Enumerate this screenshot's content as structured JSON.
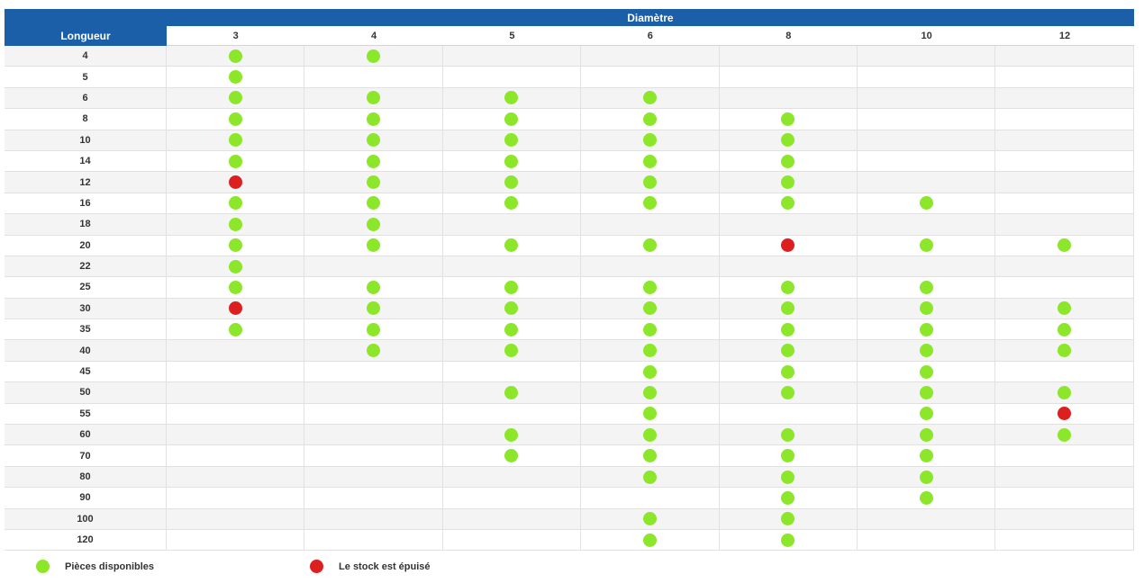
{
  "header": {
    "diametre_label": "Diamètre",
    "longueur_label": "Longueur",
    "diameters": [
      "3",
      "4",
      "5",
      "6",
      "8",
      "10",
      "12"
    ]
  },
  "colors": {
    "header_bg": "#1a5fa8",
    "available": "#8ce629",
    "out_of_stock": "#dc1f1f"
  },
  "rows": [
    {
      "length": "4",
      "cells": [
        "g",
        "g",
        "",
        "",
        "",
        "",
        ""
      ]
    },
    {
      "length": "5",
      "cells": [
        "g",
        "",
        "",
        "",
        "",
        "",
        ""
      ]
    },
    {
      "length": "6",
      "cells": [
        "g",
        "g",
        "g",
        "g",
        "",
        "",
        ""
      ]
    },
    {
      "length": "8",
      "cells": [
        "g",
        "g",
        "g",
        "g",
        "g",
        "",
        ""
      ]
    },
    {
      "length": "10",
      "cells": [
        "g",
        "g",
        "g",
        "g",
        "g",
        "",
        ""
      ]
    },
    {
      "length": "14",
      "cells": [
        "g",
        "g",
        "g",
        "g",
        "g",
        "",
        ""
      ]
    },
    {
      "length": "12",
      "cells": [
        "r",
        "g",
        "g",
        "g",
        "g",
        "",
        ""
      ]
    },
    {
      "length": "16",
      "cells": [
        "g",
        "g",
        "g",
        "g",
        "g",
        "g",
        ""
      ]
    },
    {
      "length": "18",
      "cells": [
        "g",
        "g",
        "",
        "",
        "",
        "",
        ""
      ]
    },
    {
      "length": "20",
      "cells": [
        "g",
        "g",
        "g",
        "g",
        "r",
        "g",
        "g"
      ]
    },
    {
      "length": "22",
      "cells": [
        "g",
        "",
        "",
        "",
        "",
        "",
        ""
      ]
    },
    {
      "length": "25",
      "cells": [
        "g",
        "g",
        "g",
        "g",
        "g",
        "g",
        ""
      ]
    },
    {
      "length": "30",
      "cells": [
        "r",
        "g",
        "g",
        "g",
        "g",
        "g",
        "g"
      ]
    },
    {
      "length": "35",
      "cells": [
        "g",
        "g",
        "g",
        "g",
        "g",
        "g",
        "g"
      ]
    },
    {
      "length": "40",
      "cells": [
        "",
        "g",
        "g",
        "g",
        "g",
        "g",
        "g"
      ]
    },
    {
      "length": "45",
      "cells": [
        "",
        "",
        "",
        "g",
        "g",
        "g",
        ""
      ]
    },
    {
      "length": "50",
      "cells": [
        "",
        "",
        "g",
        "g",
        "g",
        "g",
        "g"
      ]
    },
    {
      "length": "55",
      "cells": [
        "",
        "",
        "",
        "g",
        "",
        "g",
        "r"
      ]
    },
    {
      "length": "60",
      "cells": [
        "",
        "",
        "g",
        "g",
        "g",
        "g",
        "g"
      ]
    },
    {
      "length": "70",
      "cells": [
        "",
        "",
        "g",
        "g",
        "g",
        "g",
        ""
      ]
    },
    {
      "length": "80",
      "cells": [
        "",
        "",
        "",
        "g",
        "g",
        "g",
        ""
      ]
    },
    {
      "length": "90",
      "cells": [
        "",
        "",
        "",
        "",
        "g",
        "g",
        ""
      ]
    },
    {
      "length": "100",
      "cells": [
        "",
        "",
        "",
        "g",
        "g",
        "",
        ""
      ]
    },
    {
      "length": "120",
      "cells": [
        "",
        "",
        "",
        "g",
        "g",
        "",
        ""
      ]
    }
  ],
  "legend": {
    "available_label": "Pièces disponibles",
    "out_of_stock_label": "Le stock est épuisé"
  }
}
